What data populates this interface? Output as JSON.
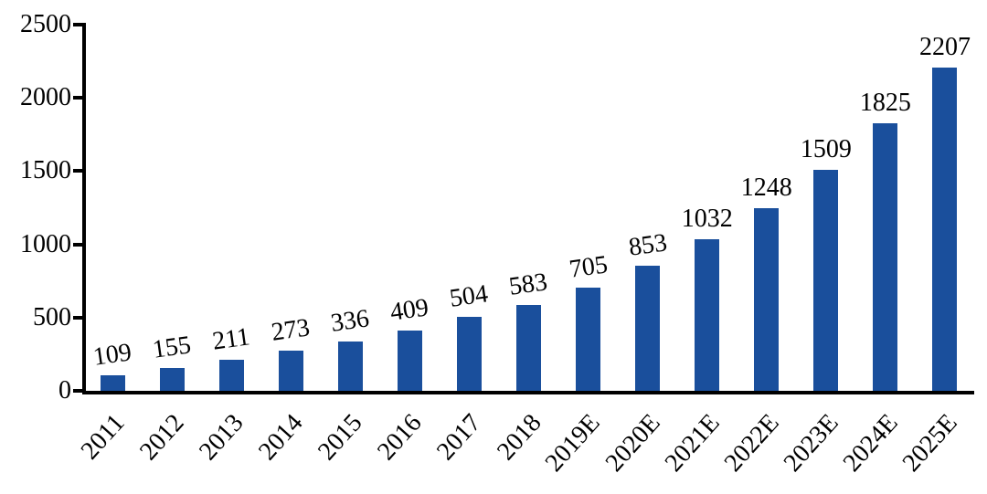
{
  "chart_data": {
    "type": "bar",
    "categories": [
      "2011",
      "2012",
      "2013",
      "2014",
      "2015",
      "2016",
      "2017",
      "2018",
      "2019E",
      "2020E",
      "2021E",
      "2022E",
      "2023E",
      "2024E",
      "2025E"
    ],
    "values": [
      109,
      155,
      211,
      273,
      336,
      409,
      504,
      583,
      705,
      853,
      1032,
      1248,
      1509,
      1825,
      2207
    ],
    "data_labels": [
      "109",
      "155",
      "211",
      "273",
      "336",
      "409",
      "504",
      "583",
      "705",
      "853",
      "1032",
      "1248",
      "1509",
      "1825",
      "2207"
    ],
    "title": "",
    "xlabel": "",
    "ylabel": "",
    "ylim": [
      0,
      2500
    ],
    "yticks": [
      0,
      500,
      1000,
      1500,
      2000,
      2500
    ],
    "ytick_labels": [
      "0",
      "500",
      "1000",
      "1500",
      "2000",
      "2500"
    ],
    "grid": false,
    "legend": null,
    "bar_color": "#1A4F9C",
    "axis_color": "#000000",
    "text_color": "#000000",
    "background_color": "#FFFFFF"
  }
}
